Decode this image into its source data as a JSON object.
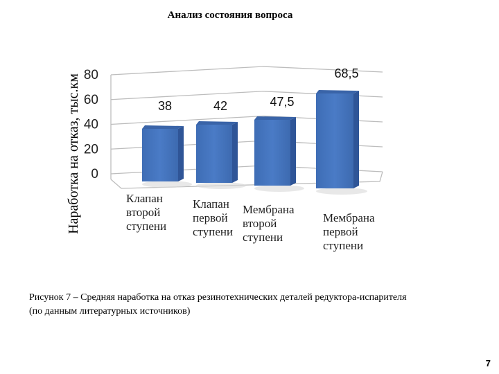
{
  "header": {
    "title": "Анализ состояния вопроса"
  },
  "chart_data": {
    "type": "bar",
    "style": "3d-column",
    "title": "",
    "xlabel": "",
    "ylabel": "Наработка на отказ, тыс.км",
    "ylim": [
      0,
      80
    ],
    "yticks": [
      "0",
      "20",
      "40",
      "60",
      "80"
    ],
    "grid": true,
    "legend": null,
    "categories": [
      [
        "Клапан",
        "второй",
        "ступени"
      ],
      [
        "Клапан",
        "первой",
        "ступени"
      ],
      [
        "Мембрана",
        "второй",
        "ступени"
      ],
      [
        "Мембрана",
        "первой",
        "ступени"
      ]
    ],
    "values": [
      38,
      42,
      47.5,
      68.5
    ],
    "value_labels": [
      "38",
      "42",
      "47,5",
      "68,5"
    ],
    "bar_color": "#4472C4"
  },
  "caption": {
    "line1": "Рисунок 7 – Средняя наработка на отказ резинотехнических деталей редуктора-испарителя",
    "line2": "(по данным литературных источников)"
  },
  "page_number": "7"
}
